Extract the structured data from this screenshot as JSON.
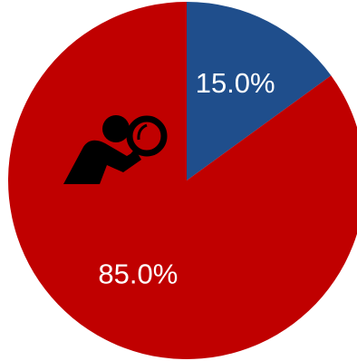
{
  "chart_data": {
    "type": "pie",
    "values": [
      15,
      85
    ],
    "value_labels": [
      "15.0%",
      "85.0%"
    ],
    "colors": [
      "#1f4e8c",
      "#c00000"
    ]
  }
}
